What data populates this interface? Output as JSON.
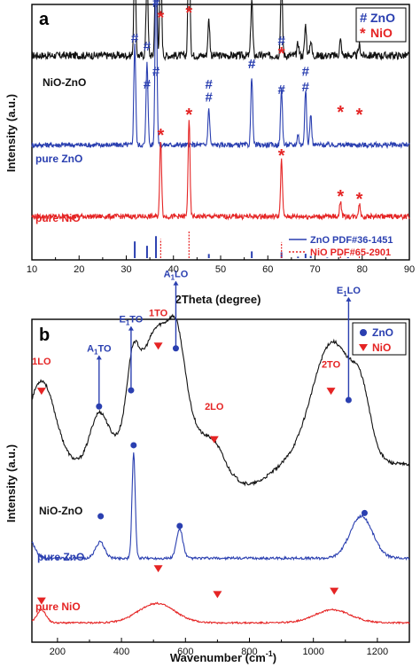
{
  "colors": {
    "black": "#111111",
    "zno": "#2a3fb0",
    "nio": "#e52424"
  },
  "chart_data": [
    {
      "type": "line",
      "panel": "a",
      "xlabel": "2Theta (degree)",
      "ylabel": "Intensity (a.u.)",
      "xlim": [
        10,
        90
      ],
      "xticks": [
        10,
        20,
        30,
        40,
        50,
        60,
        70,
        80,
        90
      ],
      "series": [
        {
          "name": "NiO-ZnO",
          "color": "#111111",
          "base": 0.8,
          "noise": 0.03,
          "peaks": [
            [
              31.8,
              0.38
            ],
            [
              34.4,
              0.32
            ],
            [
              36.3,
              0.58
            ],
            [
              37.3,
              0.4
            ],
            [
              43.3,
              0.56
            ],
            [
              47.5,
              0.14
            ],
            [
              56.6,
              0.22
            ],
            [
              62.9,
              0.3
            ],
            [
              66.4,
              0.05
            ],
            [
              68.0,
              0.12
            ],
            [
              69.1,
              0.06
            ],
            [
              75.4,
              0.06
            ],
            [
              79.4,
              0.04
            ]
          ]
        },
        {
          "name": "pure ZnO",
          "color": "#2a3fb0",
          "base": 0.45,
          "noise": 0.02,
          "peaks": [
            [
              31.8,
              0.4
            ],
            [
              34.4,
              0.33
            ],
            [
              36.3,
              0.74
            ],
            [
              47.5,
              0.14
            ],
            [
              56.6,
              0.27
            ],
            [
              62.9,
              0.22
            ],
            [
              66.4,
              0.04
            ],
            [
              68.0,
              0.22
            ],
            [
              69.1,
              0.12
            ]
          ]
        },
        {
          "name": "pure NiO",
          "color": "#e52424",
          "base": 0.17,
          "noise": 0.02,
          "peaks": [
            [
              37.3,
              0.3
            ],
            [
              43.3,
              0.38
            ],
            [
              62.9,
              0.22
            ],
            [
              75.4,
              0.06
            ],
            [
              79.4,
              0.05
            ]
          ]
        }
      ],
      "markers": {
        "zno_symbol": "#",
        "nio_symbol": "*",
        "zno": [
          [
            31.8,
            0.85
          ],
          [
            34.4,
            0.82
          ],
          [
            36.3,
            0.99
          ],
          [
            47.5,
            0.67
          ],
          [
            56.6,
            0.75
          ],
          [
            62.9,
            0.84
          ],
          [
            68.0,
            0.66
          ],
          [
            36.3,
            0.72
          ],
          [
            34.4,
            0.67
          ],
          [
            47.5,
            0.62
          ],
          [
            56.6,
            0.75
          ],
          [
            62.9,
            0.65
          ],
          [
            68.0,
            0.72
          ]
        ],
        "nio": [
          [
            37.3,
            0.96
          ],
          [
            43.3,
            0.98
          ],
          [
            62.9,
            0.82
          ],
          [
            75.4,
            0.59
          ],
          [
            79.4,
            0.58
          ],
          [
            37.3,
            0.5
          ],
          [
            43.3,
            0.58
          ],
          [
            62.9,
            0.42
          ],
          [
            75.4,
            0.26
          ],
          [
            79.4,
            0.25
          ]
        ]
      },
      "reference_sticks": {
        "zno": [
          [
            31.8,
            0.57
          ],
          [
            34.4,
            0.42
          ],
          [
            36.3,
            0.75
          ],
          [
            47.5,
            0.14
          ],
          [
            56.6,
            0.23
          ],
          [
            62.9,
            0.2
          ],
          [
            66.4,
            0.05
          ],
          [
            68.0,
            0.15
          ],
          [
            69.1,
            0.07
          ],
          [
            72.6,
            0.02
          ],
          [
            77.0,
            0.03
          ]
        ],
        "nio": [
          [
            37.3,
            0.65
          ],
          [
            43.3,
            0.95
          ],
          [
            62.9,
            0.55
          ],
          [
            75.4,
            0.16
          ],
          [
            79.4,
            0.14
          ]
        ]
      },
      "legend": {
        "position": "top-right",
        "items": [
          {
            "symbol": "#",
            "label": "ZnO"
          },
          {
            "symbol": "*",
            "label": "NiO"
          }
        ]
      },
      "ref_legend": {
        "position": "bottom-right",
        "items": [
          "ZnO PDF#36-1451",
          "NiO PDF#65-2901"
        ]
      }
    },
    {
      "type": "line",
      "panel": "b",
      "xlabel": "Wavenumber (cm",
      "xlabel_sup": "-1",
      "xlabel_close": ")",
      "ylabel": "Intensity (a.u.)",
      "xlim": [
        120,
        1300
      ],
      "xticks": [
        200,
        400,
        600,
        800,
        1000,
        1200
      ],
      "series": [
        {
          "name": "NiO-ZnO",
          "color": "#111111",
          "base": 0.55,
          "noise": 0.01,
          "bands": [
            [
              150,
              0.26,
              60
            ],
            [
              330,
              0.15,
              40
            ],
            [
              435,
              0.16,
              25
            ],
            [
              520,
              0.43,
              100
            ],
            [
              575,
              0.12,
              30
            ],
            [
              690,
              0.06,
              40
            ],
            [
              1060,
              0.38,
              90
            ],
            [
              1150,
              0.14,
              40
            ]
          ]
        },
        {
          "name": "pure ZnO",
          "color": "#2a3fb0",
          "base": 0.26,
          "noise": 0.008,
          "bands": [
            [
              100,
              0.08,
              30
            ],
            [
              333,
              0.05,
              20
            ],
            [
              438,
              0.33,
              7
            ],
            [
              582,
              0.09,
              14
            ],
            [
              1150,
              0.13,
              50
            ]
          ]
        },
        {
          "name": "pure NiO",
          "color": "#e52424",
          "base": 0.06,
          "noise": 0.005,
          "bands": [
            [
              150,
              0.04,
              20
            ],
            [
              510,
              0.06,
              80
            ],
            [
              1060,
              0.04,
              80
            ]
          ]
        }
      ],
      "annotations": [
        {
          "label": "1LO",
          "x": 150,
          "y": 0.86,
          "color": "nio",
          "marker_y": 0.81
        },
        {
          "label": "A",
          "sub": "1",
          "tail": "TO",
          "x": 330,
          "y": 0.9,
          "color": "zno",
          "marker_y": 0.73
        },
        {
          "label": "E",
          "sub": "1",
          "tail": "TO",
          "x": 430,
          "y": 0.99,
          "color": "zno",
          "marker_y": 0.78
        },
        {
          "label": "A",
          "sub": "1",
          "tail": "LO",
          "x": 570,
          "y": 1.13,
          "color": "zno",
          "marker_y": 0.91
        },
        {
          "label": "1TO",
          "x": 515,
          "y": 1.01,
          "color": "nio",
          "marker_y": 0.95
        },
        {
          "label": "2LO",
          "x": 690,
          "y": 0.72,
          "color": "nio",
          "marker_y": 0.66
        },
        {
          "label": "2TO",
          "x": 1055,
          "y": 0.85,
          "color": "nio",
          "marker_y": 0.81
        },
        {
          "label": "E",
          "sub": "1",
          "tail": "LO",
          "x": 1110,
          "y": 1.08,
          "color": "zno",
          "marker_y": 0.75
        }
      ],
      "markers": {
        "zno": [
          [
            335,
            0.39
          ],
          [
            438,
            0.61
          ],
          [
            582,
            0.36
          ],
          [
            1160,
            0.4
          ]
        ],
        "nio": [
          [
            150,
            0.1
          ],
          [
            515,
            0.2
          ],
          [
            700,
            0.12
          ],
          [
            1065,
            0.13
          ]
        ]
      },
      "legend": {
        "position": "top-right",
        "items": [
          "ZnO",
          "NiO"
        ]
      }
    }
  ]
}
